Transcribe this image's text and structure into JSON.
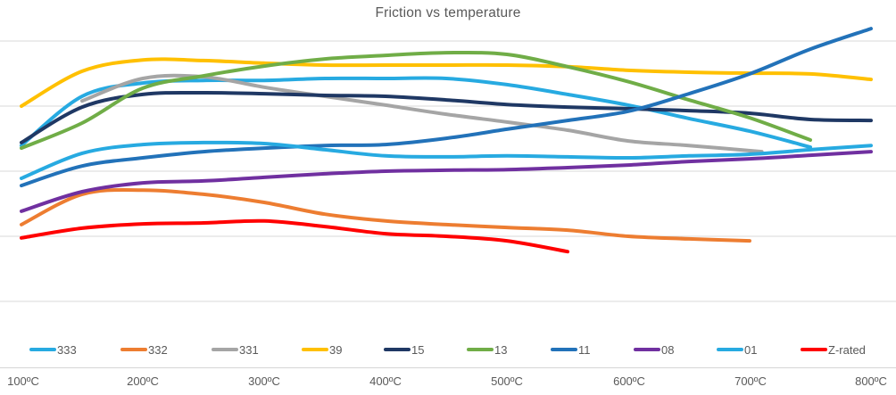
{
  "title": "Friction vs temperature",
  "axis": {
    "x_ticks": [
      "100ºC",
      "200ºC",
      "300ºC",
      "400ºC",
      "500ºC",
      "600ºC",
      "700ºC",
      "800ºC"
    ]
  },
  "chart_data": {
    "type": "line",
    "title": "Friction vs temperature",
    "xlabel": "",
    "ylabel": "",
    "x_ticks": [
      "100ºC",
      "200ºC",
      "300ºC",
      "400ºC",
      "500ºC",
      "600ºC",
      "700ºC",
      "800ºC"
    ],
    "x_range_c": [
      100,
      800
    ],
    "y_axis_labeled": false,
    "ylim": [
      0,
      11
    ],
    "gridlines": "horizontal, unlabeled, every 2 units (5 lines)",
    "legend_position": "bottom",
    "note": "y values estimated in gridline units: 0 = x-axis, 2 per gridline, top gridline = 10",
    "series": [
      {
        "name": "333",
        "color": "#27AAE1",
        "points": [
          [
            100,
            6.79
          ],
          [
            150,
            8.3
          ],
          [
            200,
            8.71
          ],
          [
            250,
            8.79
          ],
          [
            300,
            8.79
          ],
          [
            350,
            8.85
          ],
          [
            400,
            8.85
          ],
          [
            450,
            8.85
          ],
          [
            500,
            8.66
          ],
          [
            550,
            8.36
          ],
          [
            600,
            8.03
          ],
          [
            650,
            7.62
          ],
          [
            700,
            7.23
          ],
          [
            750,
            6.74
          ]
        ]
      },
      {
        "name": "332",
        "color": "#ED7D31",
        "points": [
          [
            100,
            4.36
          ],
          [
            150,
            5.29
          ],
          [
            200,
            5.42
          ],
          [
            250,
            5.29
          ],
          [
            300,
            5.04
          ],
          [
            350,
            4.68
          ],
          [
            400,
            4.47
          ],
          [
            450,
            4.36
          ],
          [
            500,
            4.27
          ],
          [
            550,
            4.19
          ],
          [
            600,
            4.0
          ],
          [
            650,
            3.92
          ],
          [
            700,
            3.86
          ]
        ]
      },
      {
        "name": "331",
        "color": "#A5A5A5",
        "points": [
          [
            150,
            8.16
          ],
          [
            200,
            8.85
          ],
          [
            250,
            8.9
          ],
          [
            300,
            8.58
          ],
          [
            350,
            8.3
          ],
          [
            400,
            8.03
          ],
          [
            450,
            7.75
          ],
          [
            500,
            7.51
          ],
          [
            550,
            7.26
          ],
          [
            600,
            6.93
          ],
          [
            650,
            6.79
          ],
          [
            710,
            6.6
          ]
        ]
      },
      {
        "name": "39",
        "color": "#FFC000",
        "points": [
          [
            100,
            8.0
          ],
          [
            150,
            9.07
          ],
          [
            200,
            9.42
          ],
          [
            250,
            9.4
          ],
          [
            300,
            9.32
          ],
          [
            350,
            9.26
          ],
          [
            400,
            9.26
          ],
          [
            450,
            9.26
          ],
          [
            500,
            9.26
          ],
          [
            550,
            9.21
          ],
          [
            600,
            9.1
          ],
          [
            650,
            9.04
          ],
          [
            700,
            9.01
          ],
          [
            750,
            8.99
          ],
          [
            800,
            8.82
          ]
        ]
      },
      {
        "name": "15",
        "color": "#1F3864",
        "points": [
          [
            100,
            6.88
          ],
          [
            150,
            7.97
          ],
          [
            200,
            8.36
          ],
          [
            250,
            8.41
          ],
          [
            300,
            8.38
          ],
          [
            350,
            8.33
          ],
          [
            400,
            8.3
          ],
          [
            450,
            8.19
          ],
          [
            500,
            8.05
          ],
          [
            550,
            7.97
          ],
          [
            600,
            7.92
          ],
          [
            650,
            7.86
          ],
          [
            700,
            7.78
          ],
          [
            750,
            7.59
          ],
          [
            800,
            7.56
          ]
        ]
      },
      {
        "name": "13",
        "color": "#70AD47",
        "points": [
          [
            100,
            6.71
          ],
          [
            150,
            7.48
          ],
          [
            200,
            8.55
          ],
          [
            250,
            8.93
          ],
          [
            300,
            9.23
          ],
          [
            350,
            9.45
          ],
          [
            400,
            9.56
          ],
          [
            450,
            9.64
          ],
          [
            500,
            9.59
          ],
          [
            550,
            9.21
          ],
          [
            600,
            8.75
          ],
          [
            650,
            8.19
          ],
          [
            700,
            7.64
          ],
          [
            750,
            6.96
          ]
        ]
      },
      {
        "name": "11",
        "color": "#2272B9",
        "points": [
          [
            100,
            5.56
          ],
          [
            150,
            6.16
          ],
          [
            200,
            6.41
          ],
          [
            250,
            6.6
          ],
          [
            300,
            6.71
          ],
          [
            350,
            6.79
          ],
          [
            400,
            6.82
          ],
          [
            450,
            7.01
          ],
          [
            500,
            7.29
          ],
          [
            550,
            7.56
          ],
          [
            600,
            7.84
          ],
          [
            650,
            8.38
          ],
          [
            700,
            8.99
          ],
          [
            750,
            9.75
          ],
          [
            800,
            10.38
          ]
        ]
      },
      {
        "name": "08",
        "color": "#7030A0",
        "points": [
          [
            100,
            4.77
          ],
          [
            150,
            5.37
          ],
          [
            200,
            5.64
          ],
          [
            250,
            5.7
          ],
          [
            300,
            5.81
          ],
          [
            350,
            5.92
          ],
          [
            400,
            6.0
          ],
          [
            450,
            6.03
          ],
          [
            500,
            6.05
          ],
          [
            550,
            6.11
          ],
          [
            600,
            6.19
          ],
          [
            650,
            6.3
          ],
          [
            700,
            6.38
          ],
          [
            750,
            6.49
          ],
          [
            800,
            6.6
          ]
        ]
      },
      {
        "name": "01",
        "color": "#27AAE1",
        "points": [
          [
            100,
            5.78
          ],
          [
            150,
            6.55
          ],
          [
            200,
            6.82
          ],
          [
            250,
            6.88
          ],
          [
            300,
            6.85
          ],
          [
            350,
            6.66
          ],
          [
            400,
            6.47
          ],
          [
            450,
            6.44
          ],
          [
            500,
            6.47
          ],
          [
            550,
            6.44
          ],
          [
            600,
            6.41
          ],
          [
            650,
            6.47
          ],
          [
            700,
            6.52
          ],
          [
            750,
            6.66
          ],
          [
            800,
            6.79
          ]
        ]
      },
      {
        "name": "Z-rated",
        "color": "#FF0000",
        "points": [
          [
            100,
            3.95
          ],
          [
            150,
            4.25
          ],
          [
            200,
            4.38
          ],
          [
            250,
            4.41
          ],
          [
            300,
            4.47
          ],
          [
            350,
            4.3
          ],
          [
            400,
            4.08
          ],
          [
            450,
            4.0
          ],
          [
            500,
            3.86
          ],
          [
            550,
            3.53
          ]
        ]
      }
    ]
  },
  "style": {
    "gridline_color": "#d9d9d9",
    "axis_line_color": "#d6d6d6",
    "text_color": "#595959",
    "background": "#ffffff"
  }
}
